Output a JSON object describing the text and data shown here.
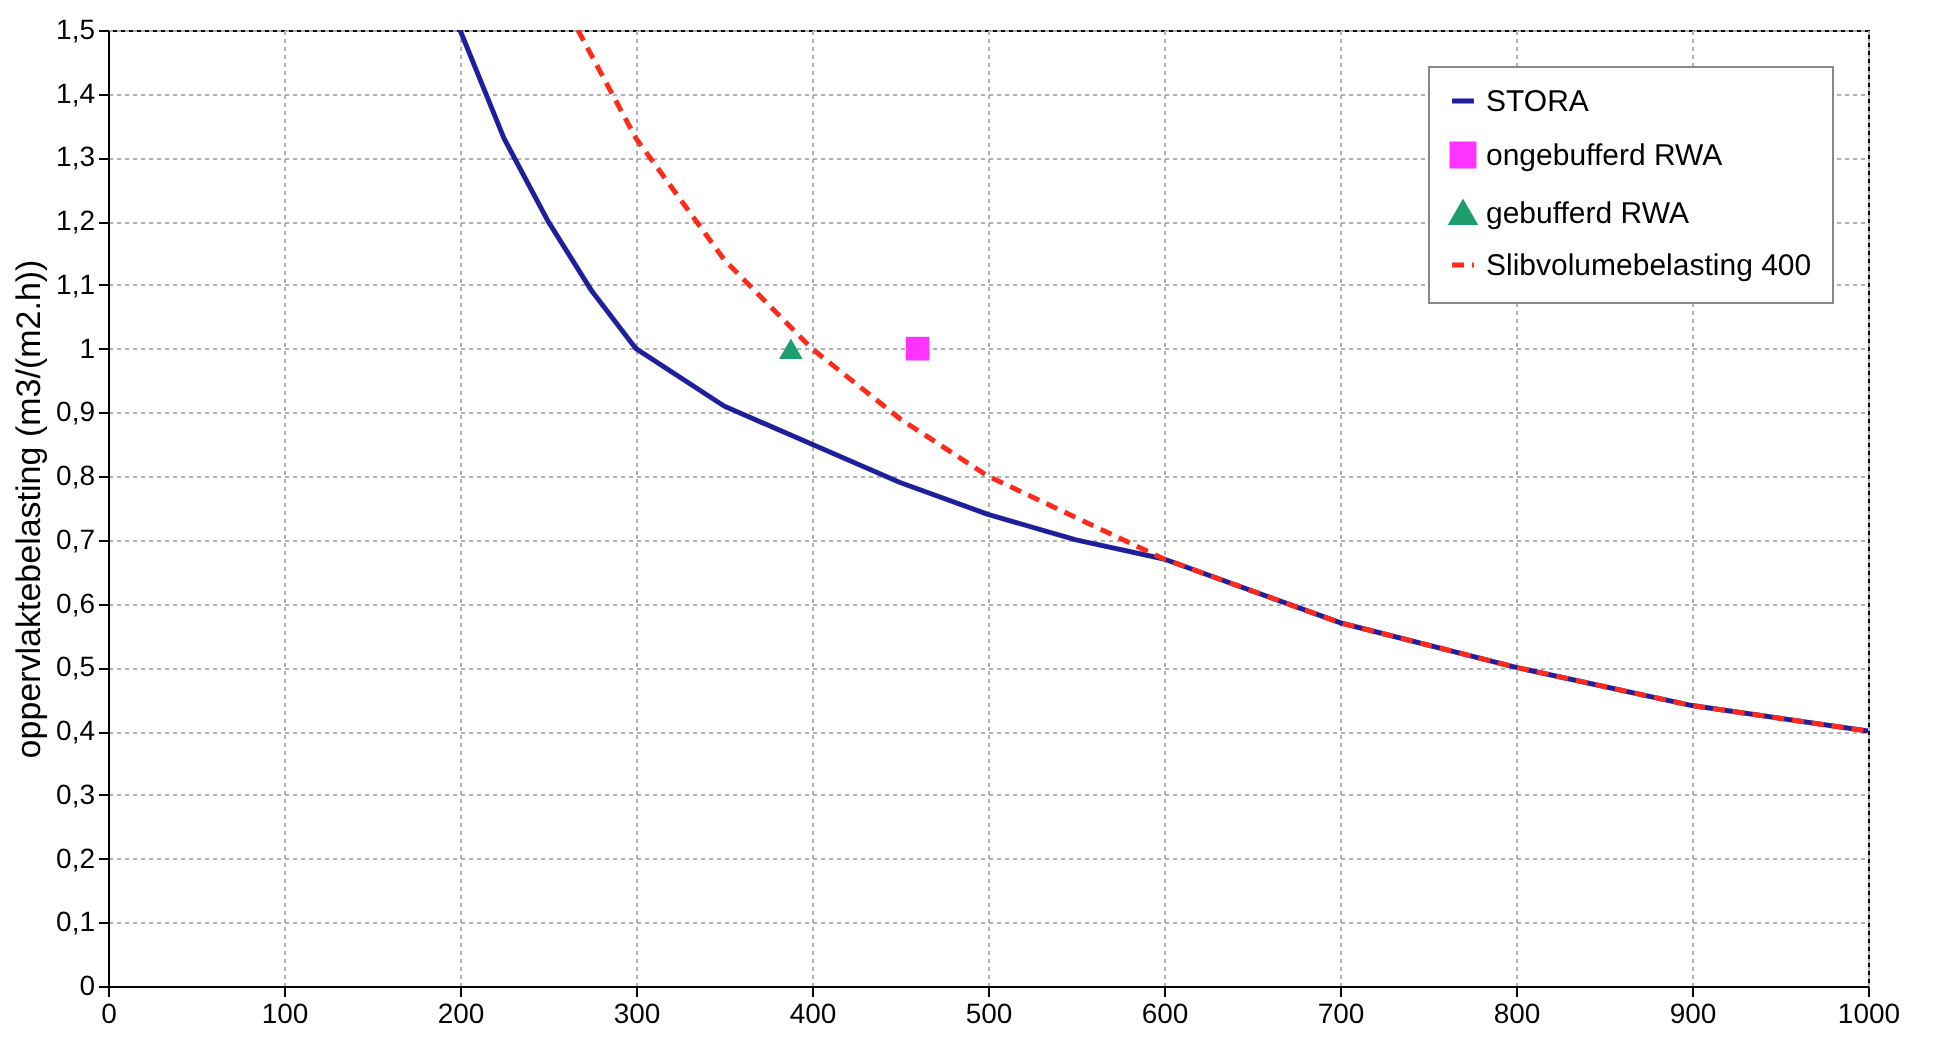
{
  "chart_data": {
    "type": "line",
    "ylabel": "oppervlaktebelasting (m3/(m2.h))",
    "xlim": [
      0,
      1000
    ],
    "xticks": [
      0,
      100,
      200,
      300,
      400,
      500,
      600,
      700,
      800,
      900,
      1000
    ],
    "ylim": [
      0,
      1.5
    ],
    "yticks": [
      0,
      {
        "value": 0.1,
        "label": "0,1"
      },
      {
        "value": 0.2,
        "label": "0,2"
      },
      {
        "value": 0.3,
        "label": "0,3"
      },
      {
        "value": 0.4,
        "label": "0,4"
      },
      {
        "value": 0.5,
        "label": "0,5"
      },
      {
        "value": 0.6,
        "label": "0,6"
      },
      {
        "value": 0.7,
        "label": "0,7"
      },
      {
        "value": 0.8,
        "label": "0,8"
      },
      {
        "value": 0.9,
        "label": "0,9"
      },
      1,
      {
        "value": 1.1,
        "label": "1,1"
      },
      {
        "value": 1.2,
        "label": "1,2"
      },
      {
        "value": 1.3,
        "label": "1,3"
      },
      {
        "value": 1.4,
        "label": "1,4"
      },
      {
        "value": 1.5,
        "label": "1,5"
      }
    ],
    "grid": true,
    "legend": "top right",
    "series": [
      {
        "name": "STORA",
        "type": "line",
        "color": "#1f1f9c",
        "line_style": "solid",
        "marker": "none",
        "x": [
          200,
          225,
          250,
          275,
          300,
          350,
          400,
          450,
          500,
          550,
          600,
          700,
          800,
          900,
          1000
        ],
        "values": [
          1.5,
          1.33,
          1.2,
          1.09,
          1.0,
          0.91,
          0.85,
          0.79,
          0.74,
          0.7,
          0.67,
          0.57,
          0.5,
          0.44,
          0.4
        ]
      },
      {
        "name": "ongebufferd RWA",
        "type": "scatter",
        "color": "#ff33ff",
        "marker": "square",
        "x": [
          460
        ],
        "values": [
          1.0
        ]
      },
      {
        "name": "gebufferd RWA",
        "type": "scatter",
        "color": "#1e9e6e",
        "marker": "triangle",
        "x": [
          388
        ],
        "values": [
          1.0
        ]
      },
      {
        "name": "Slibvolumebelasting 400",
        "type": "line",
        "color": "#ff2a1a",
        "line_style": "dashed",
        "marker": "none",
        "x": [
          267,
          300,
          350,
          400,
          450,
          500,
          600,
          700,
          800,
          900,
          1000
        ],
        "values": [
          1.5,
          1.33,
          1.14,
          1.0,
          0.89,
          0.8,
          0.67,
          0.57,
          0.5,
          0.44,
          0.4
        ]
      }
    ]
  }
}
